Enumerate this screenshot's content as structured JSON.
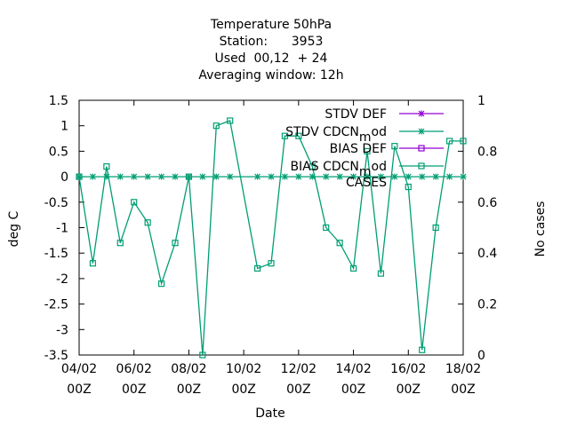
{
  "chart_data": {
    "type": "line",
    "title_lines": [
      "Temperature 50hPa",
      "Station:      3953",
      "Used  00,12  + 24",
      "Averaging window: 12h"
    ],
    "xlabel": "Date",
    "ylabel": "deg C",
    "y2label": "No cases",
    "ylim": [
      -3.5,
      1.5
    ],
    "y2lim": [
      0,
      1
    ],
    "xlim": [
      0,
      14
    ],
    "yticks": [
      -3.5,
      -3,
      -2.5,
      -2,
      -1.5,
      -1,
      -0.5,
      0,
      0.5,
      1,
      1.5
    ],
    "ytick_labels": [
      "-3.5",
      "-3",
      "-2.5",
      "-2",
      "-1.5",
      "-1",
      "-0.5",
      "0",
      "0.5",
      "1",
      "1.5"
    ],
    "y2ticks": [
      0,
      0.2,
      0.4,
      0.6,
      0.8,
      1
    ],
    "y2tick_labels": [
      "0",
      "0.2",
      "0.4",
      "0.6",
      "0.8",
      "1"
    ],
    "xticks": [
      0,
      2,
      4,
      6,
      8,
      10,
      12,
      14
    ],
    "xtick_labels": [
      [
        "04/02",
        "00Z"
      ],
      [
        "06/02",
        "00Z"
      ],
      [
        "08/02",
        "00Z"
      ],
      [
        "10/02",
        "00Z"
      ],
      [
        "12/02",
        "00Z"
      ],
      [
        "14/02",
        "00Z"
      ],
      [
        "16/02",
        "00Z"
      ],
      [
        "18/02",
        "00Z"
      ]
    ],
    "grid": false,
    "legend_position": "top-right",
    "legend": [
      {
        "label": "STDV DEF",
        "color": "#9400d3",
        "marker": "x"
      },
      {
        "label": "STDV CDCN_mod",
        "color": "#009e73",
        "marker": "x"
      },
      {
        "label": "BIAS DEF",
        "color": "#9400d3",
        "marker": "square"
      },
      {
        "label": "BIAS CDCN_mod",
        "color": "#009e73",
        "marker": "square"
      },
      {
        "label": "CASES",
        "color": "#000000",
        "marker": "none"
      }
    ],
    "series": [
      {
        "name": "BIAS CDCN_mod",
        "color": "#009e73",
        "marker": "square",
        "x": [
          0,
          0.5,
          1,
          1.5,
          2,
          2.5,
          3,
          3.5,
          4,
          4.5,
          5,
          5.5,
          6.5,
          7,
          7.5,
          8,
          8.5,
          9,
          9.5,
          10,
          10.5,
          11,
          11.5,
          12,
          12.5,
          13,
          13.5,
          14
        ],
        "y": [
          0,
          -1.7,
          0.2,
          -1.3,
          -0.5,
          -0.9,
          -2.1,
          -1.3,
          0,
          -3.5,
          1.0,
          1.1,
          -1.8,
          -1.7,
          0.8,
          0.8,
          0.2,
          -1.0,
          -1.3,
          -1.8,
          0.5,
          -1.9,
          0.6,
          -0.2,
          -3.4,
          -1.0,
          0.7,
          0.7
        ]
      },
      {
        "name": "STDV CDCN_mod",
        "color": "#009e73",
        "marker": "x",
        "x": [
          0,
          0.5,
          1,
          1.5,
          2,
          2.5,
          3,
          3.5,
          4,
          4.5,
          5,
          5.5,
          6.5,
          7,
          7.5,
          8,
          8.5,
          9,
          9.5,
          10,
          10.5,
          11,
          11.5,
          12,
          12.5,
          13,
          13.5,
          14
        ],
        "y": [
          0,
          0,
          0,
          0,
          0,
          0,
          0,
          0,
          0,
          0,
          0,
          0,
          0,
          0,
          0,
          0,
          0,
          0,
          0,
          0,
          0,
          0,
          0,
          0,
          0,
          0,
          0,
          0
        ]
      }
    ]
  }
}
